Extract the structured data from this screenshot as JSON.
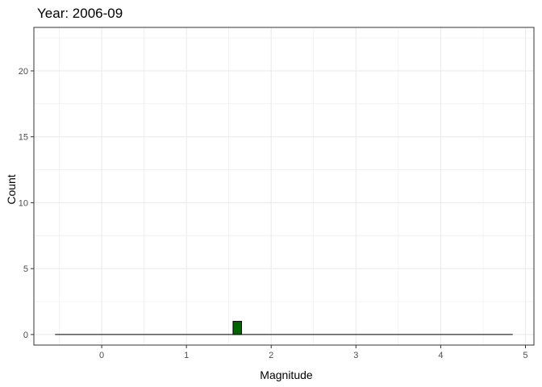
{
  "chart_data": {
    "type": "bar",
    "title": "Year: 2006-09",
    "xlabel": "Magnitude",
    "ylabel": "Count",
    "xlim": [
      -0.8,
      5.1
    ],
    "ylim": [
      -0.8,
      23.3
    ],
    "xticks": [
      0,
      1,
      2,
      3,
      4,
      5
    ],
    "yticks": [
      0,
      5,
      10,
      15,
      20
    ],
    "grid": true,
    "baseline": {
      "from": -0.55,
      "to": 4.85,
      "y": 0
    },
    "bins": [
      {
        "x0": 1.55,
        "x1": 1.65,
        "count": 1
      }
    ],
    "colors": {
      "bar_fill": "#006400",
      "bar_stroke": "#000000",
      "grid": "#ebebeb",
      "panel_border": "#333333"
    }
  }
}
